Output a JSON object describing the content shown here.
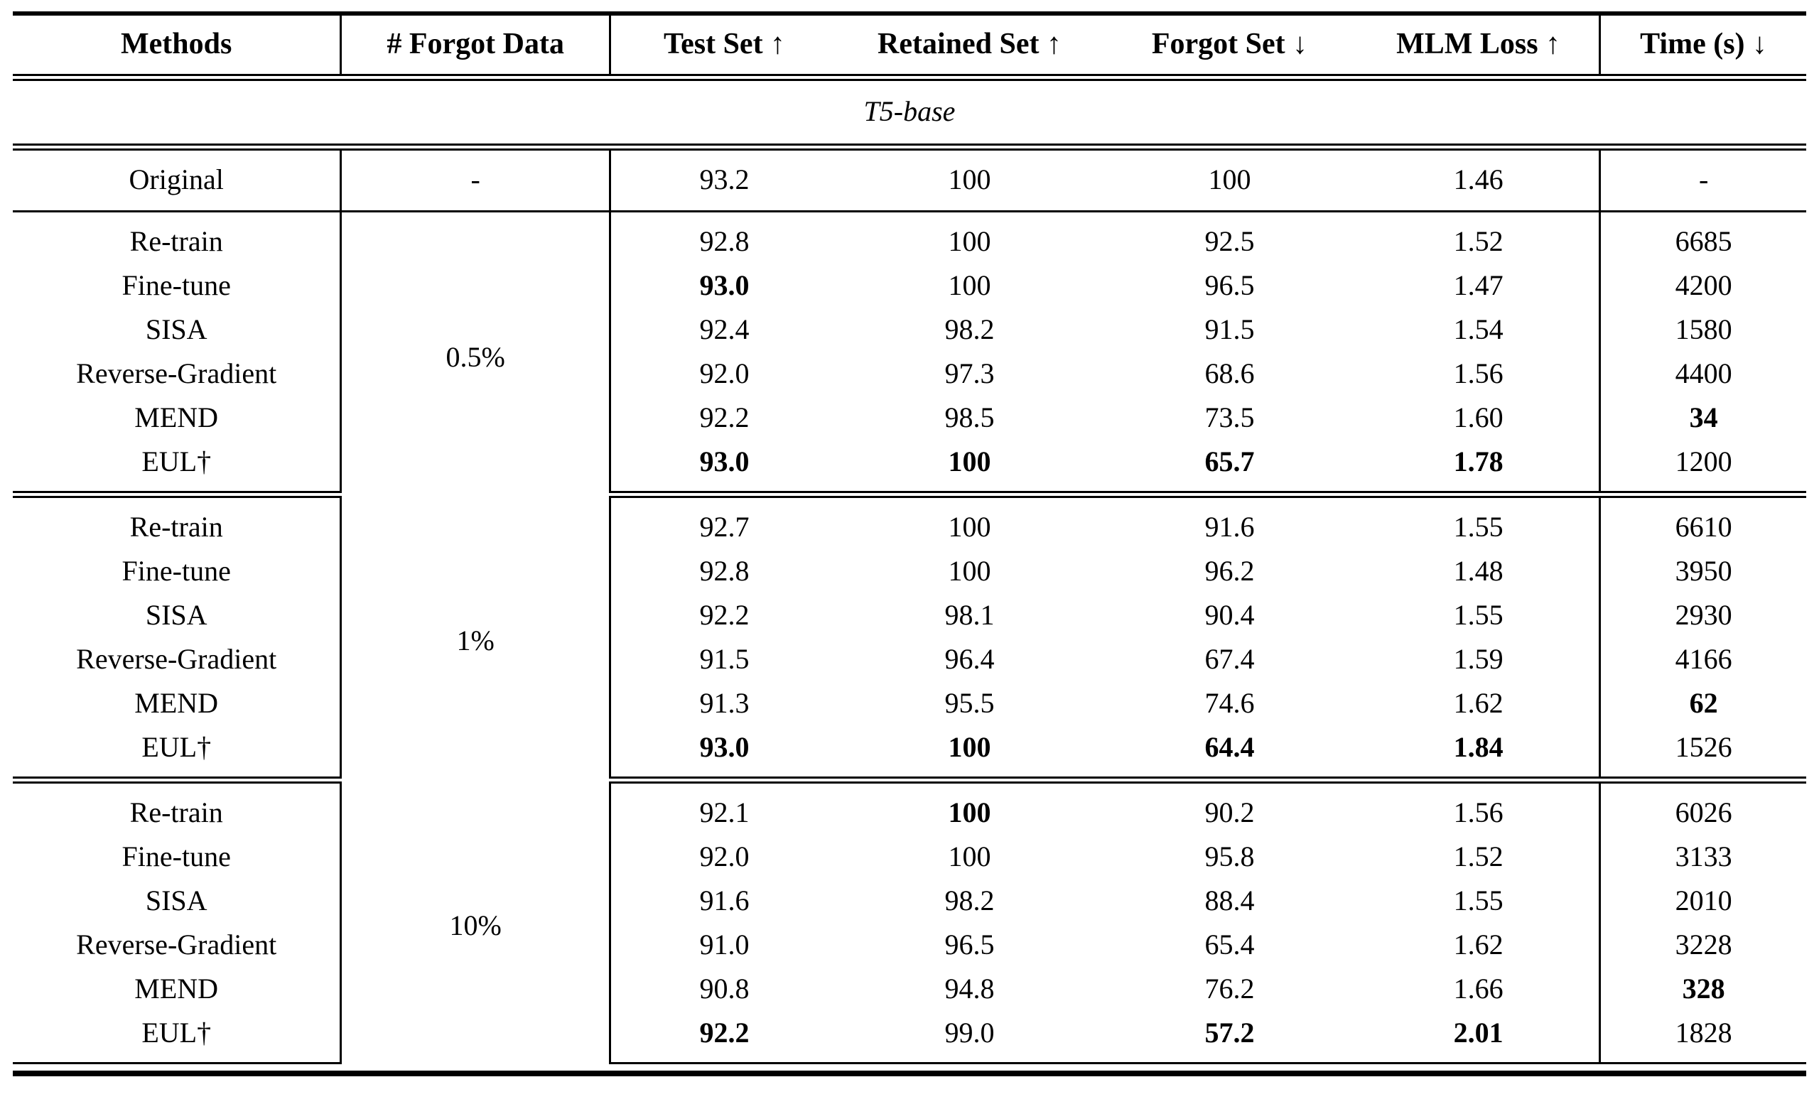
{
  "colors": {
    "text": "#000000",
    "background": "#ffffff",
    "rule": "#000000"
  },
  "table": {
    "columns": [
      {
        "key": "methods",
        "label": "Methods"
      },
      {
        "key": "forgot-data",
        "label": "# Forgot Data"
      },
      {
        "key": "test-set",
        "label": "Test Set ↑"
      },
      {
        "key": "retained-set",
        "label": "Retained Set ↑"
      },
      {
        "key": "forgot-set",
        "label": "Forgot Set ↓"
      },
      {
        "key": "mlm-loss",
        "label": "MLM Loss ↑"
      },
      {
        "key": "time",
        "label": "Time (s) ↓"
      }
    ],
    "section_title": "T5-base",
    "original_row": {
      "method": "Original",
      "forgot_data": "-",
      "values": [
        "93.2",
        "100",
        "100",
        "1.46",
        "-"
      ],
      "bold": [
        0,
        0,
        0,
        0,
        0
      ]
    },
    "groups": [
      {
        "forgot_data": "0.5%",
        "rows": [
          {
            "method": "Re-train",
            "values": [
              "92.8",
              "100",
              "92.5",
              "1.52",
              "6685"
            ],
            "bold": [
              0,
              0,
              0,
              0,
              0
            ]
          },
          {
            "method": "Fine-tune",
            "values": [
              "93.0",
              "100",
              "96.5",
              "1.47",
              "4200"
            ],
            "bold": [
              1,
              0,
              0,
              0,
              0
            ]
          },
          {
            "method": "SISA",
            "values": [
              "92.4",
              "98.2",
              "91.5",
              "1.54",
              "1580"
            ],
            "bold": [
              0,
              0,
              0,
              0,
              0
            ]
          },
          {
            "method": "Reverse-Gradient",
            "values": [
              "92.0",
              "97.3",
              "68.6",
              "1.56",
              "4400"
            ],
            "bold": [
              0,
              0,
              0,
              0,
              0
            ]
          },
          {
            "method": "MEND",
            "values": [
              "92.2",
              "98.5",
              "73.5",
              "1.60",
              "34"
            ],
            "bold": [
              0,
              0,
              0,
              0,
              1
            ]
          },
          {
            "method": "EUL†",
            "values": [
              "93.0",
              "100",
              "65.7",
              "1.78",
              "1200"
            ],
            "bold": [
              1,
              1,
              1,
              1,
              0
            ]
          }
        ]
      },
      {
        "forgot_data": "1%",
        "rows": [
          {
            "method": "Re-train",
            "values": [
              "92.7",
              "100",
              "91.6",
              "1.55",
              "6610"
            ],
            "bold": [
              0,
              0,
              0,
              0,
              0
            ]
          },
          {
            "method": "Fine-tune",
            "values": [
              "92.8",
              "100",
              "96.2",
              "1.48",
              "3950"
            ],
            "bold": [
              0,
              0,
              0,
              0,
              0
            ]
          },
          {
            "method": "SISA",
            "values": [
              "92.2",
              "98.1",
              "90.4",
              "1.55",
              "2930"
            ],
            "bold": [
              0,
              0,
              0,
              0,
              0
            ]
          },
          {
            "method": "Reverse-Gradient",
            "values": [
              "91.5",
              "96.4",
              "67.4",
              "1.59",
              "4166"
            ],
            "bold": [
              0,
              0,
              0,
              0,
              0
            ]
          },
          {
            "method": "MEND",
            "values": [
              "91.3",
              "95.5",
              "74.6",
              "1.62",
              "62"
            ],
            "bold": [
              0,
              0,
              0,
              0,
              1
            ]
          },
          {
            "method": "EUL†",
            "values": [
              "93.0",
              "100",
              "64.4",
              "1.84",
              "1526"
            ],
            "bold": [
              1,
              1,
              1,
              1,
              0
            ]
          }
        ]
      },
      {
        "forgot_data": "10%",
        "rows": [
          {
            "method": "Re-train",
            "values": [
              "92.1",
              "100",
              "90.2",
              "1.56",
              "6026"
            ],
            "bold": [
              0,
              1,
              0,
              0,
              0
            ]
          },
          {
            "method": "Fine-tune",
            "values": [
              "92.0",
              "100",
              "95.8",
              "1.52",
              "3133"
            ],
            "bold": [
              0,
              0,
              0,
              0,
              0
            ]
          },
          {
            "method": "SISA",
            "values": [
              "91.6",
              "98.2",
              "88.4",
              "1.55",
              "2010"
            ],
            "bold": [
              0,
              0,
              0,
              0,
              0
            ]
          },
          {
            "method": "Reverse-Gradient",
            "values": [
              "91.0",
              "96.5",
              "65.4",
              "1.62",
              "3228"
            ],
            "bold": [
              0,
              0,
              0,
              0,
              0
            ]
          },
          {
            "method": "MEND",
            "values": [
              "90.8",
              "94.8",
              "76.2",
              "1.66",
              "328"
            ],
            "bold": [
              0,
              0,
              0,
              0,
              1
            ]
          },
          {
            "method": "EUL†",
            "values": [
              "92.2",
              "99.0",
              "57.2",
              "2.01",
              "1828"
            ],
            "bold": [
              1,
              0,
              1,
              1,
              0
            ]
          }
        ]
      }
    ]
  }
}
